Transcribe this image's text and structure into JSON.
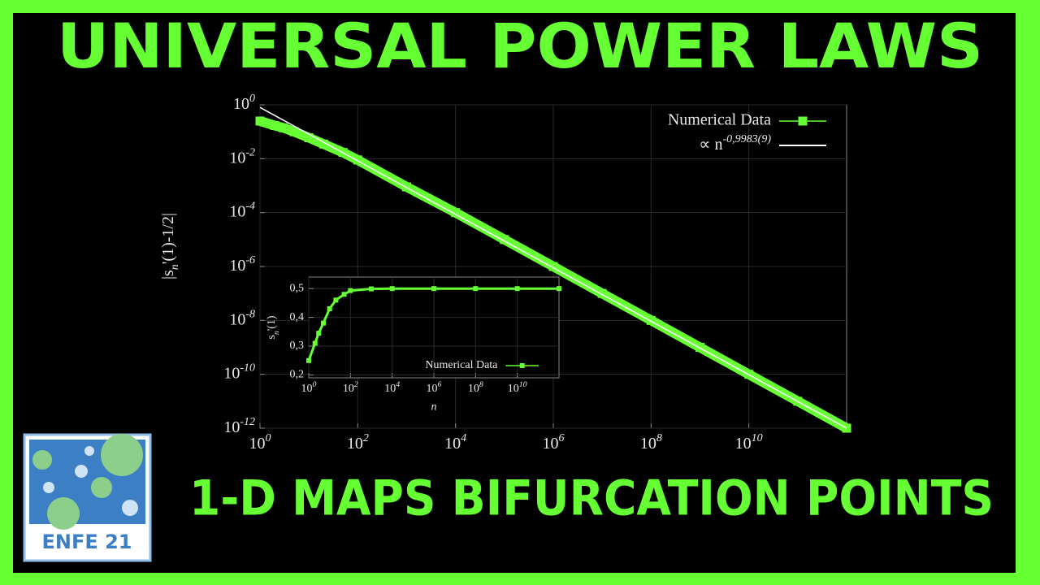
{
  "header": {
    "title": "UNIVERSAL POWER LAWS",
    "subtitle": "1-D MAPS BIFURCATION POINTS"
  },
  "logo": {
    "text": "ENFE 21"
  },
  "chart_data": [
    {
      "type": "line",
      "y_label": "|s_n'(1)-1/2|",
      "xlog": true,
      "ylog": true,
      "grid": true,
      "legend": "top-right",
      "xlim": [
        1,
        1000000000000
      ],
      "ylim": [
        1e-12,
        1
      ],
      "xticks": [
        {
          "value": 1,
          "label": "10^0"
        },
        {
          "value": 100,
          "label": "10^2"
        },
        {
          "value": 10000,
          "label": "10^4"
        },
        {
          "value": 1000000,
          "label": "10^6"
        },
        {
          "value": 100000000,
          "label": "10^8"
        },
        {
          "value": 10000000000,
          "label": "10^10"
        }
      ],
      "yticks": [
        {
          "value": 1,
          "label": "10^0"
        },
        {
          "value": 0.01,
          "label": "10^-2"
        },
        {
          "value": 0.0001,
          "label": "10^-4"
        },
        {
          "value": 1e-06,
          "label": "10^-6"
        },
        {
          "value": 1e-08,
          "label": "10^-8"
        },
        {
          "value": 1e-10,
          "label": "10^-10"
        },
        {
          "value": 1e-12,
          "label": "10^-12"
        }
      ],
      "series": [
        {
          "name": "Numerical Data",
          "color": "#66ff33",
          "marker": "square",
          "x": [
            1,
            2,
            3,
            5,
            10,
            20,
            50,
            100,
            1000,
            10000,
            100000,
            1000000,
            10000000,
            100000000,
            1000000000,
            10000000000,
            100000000000,
            1000000000000
          ],
          "values": [
            0.25,
            0.17,
            0.14,
            0.1,
            0.06,
            0.035,
            0.017,
            0.009,
            0.0009,
            0.0001,
            1e-05,
            1e-06,
            1e-07,
            1e-08,
            1e-09,
            1e-10,
            1e-11,
            1e-12
          ]
        },
        {
          "name": "∝ n^-0,9983(9)",
          "color": "#ffffff",
          "marker": "none",
          "x": [
            1,
            1000000000000
          ],
          "values": [
            0.8,
            1e-12
          ]
        }
      ]
    },
    {
      "type": "line",
      "x_label": "n",
      "y_label": "s_n'(1)",
      "xlog": true,
      "ylog": false,
      "grid": true,
      "legend": "bottom-right",
      "xlim": [
        1,
        1000000000000
      ],
      "ylim": [
        0.19,
        0.54
      ],
      "xticks": [
        {
          "value": 1,
          "label": "10^0"
        },
        {
          "value": 100,
          "label": "10^2"
        },
        {
          "value": 10000,
          "label": "10^4"
        },
        {
          "value": 1000000,
          "label": "10^6"
        },
        {
          "value": 100000000,
          "label": "10^8"
        },
        {
          "value": 10000000000,
          "label": "10^10"
        }
      ],
      "yticks": [
        {
          "value": 0.2,
          "label": "0,2"
        },
        {
          "value": 0.3,
          "label": "0,3"
        },
        {
          "value": 0.4,
          "label": "0,4"
        },
        {
          "value": 0.5,
          "label": "0,5"
        }
      ],
      "series": [
        {
          "name": "Numerical Data",
          "color": "#66ff33",
          "marker": "square",
          "x": [
            1,
            2,
            3,
            5,
            10,
            20,
            50,
            100,
            1000,
            10000,
            1000000,
            100000000,
            10000000000,
            1000000000000
          ],
          "values": [
            0.25,
            0.31,
            0.345,
            0.38,
            0.43,
            0.46,
            0.48,
            0.493,
            0.499,
            0.5,
            0.5,
            0.5,
            0.5,
            0.5
          ]
        }
      ]
    }
  ]
}
